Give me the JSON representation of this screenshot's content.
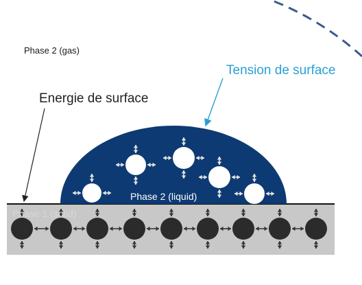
{
  "labels": {
    "gas_phase": "Phase 2 (gas)",
    "surface_energy": "Energie de surface",
    "surface_tension": "Tension de surface",
    "liquid_phase": "Phase 2 (liquid)",
    "solid_phase": "Phase 1 (solid)"
  },
  "colors": {
    "droplet_fill": "#0d3a73",
    "solid_fill": "#c8c8c8",
    "solid_particle": "#2b2b2b",
    "liquid_particle": "#ffffff",
    "tension_accent": "#2a9fd6",
    "text_dark": "#222222",
    "arrow_on_light": "#333333",
    "arrow_on_dark": "#e6e6e6"
  },
  "icons": {
    "force_arrow": "double-headed-arrow",
    "particle": "filled-circle"
  }
}
